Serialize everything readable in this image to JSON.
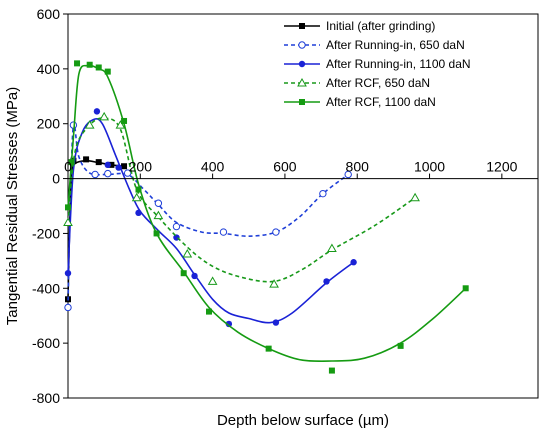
{
  "chart_data": {
    "type": "scatter",
    "title": "",
    "xlabel": "Depth below surface (µm)",
    "ylabel": "Tangential Residual Stresses (MPa)",
    "xlim": [
      0,
      1300
    ],
    "ylim": [
      -800,
      600
    ],
    "xticks": [
      0,
      200,
      400,
      600,
      800,
      1000,
      1200
    ],
    "yticks": [
      -800,
      -600,
      -400,
      -200,
      0,
      200,
      400,
      600
    ],
    "x_tick_labels": [
      "0",
      "200",
      "400",
      "600",
      "800",
      "1000",
      "1200"
    ],
    "y_tick_labels": [
      "-800",
      "-600",
      "-400",
      "-200",
      "0",
      "200",
      "400",
      "600"
    ],
    "grid": false,
    "legend_position": "top-right",
    "series": [
      {
        "name": "Initial (after grinding)",
        "color": "#000000",
        "marker": "square-filled",
        "line": "solid",
        "points": [
          [
            0,
            -440
          ],
          [
            15,
            65
          ],
          [
            50,
            70
          ],
          [
            85,
            60
          ],
          [
            120,
            50
          ],
          [
            155,
            45
          ]
        ],
        "curve": [
          [
            0,
            -440
          ],
          [
            5,
            -150
          ],
          [
            10,
            20
          ],
          [
            20,
            55
          ],
          [
            50,
            65
          ],
          [
            85,
            58
          ],
          [
            120,
            50
          ],
          [
            155,
            45
          ]
        ]
      },
      {
        "name": "After Running-in, 650 daN",
        "color": "#1f3fd8",
        "marker": "circle-open",
        "line": "dashed",
        "points": [
          [
            0,
            -470
          ],
          [
            15,
            195
          ],
          [
            75,
            15
          ],
          [
            110,
            18
          ],
          [
            165,
            20
          ],
          [
            250,
            -90
          ],
          [
            300,
            -175
          ],
          [
            430,
            -195
          ],
          [
            575,
            -195
          ],
          [
            705,
            -55
          ],
          [
            775,
            15
          ]
        ],
        "curve": [
          [
            0,
            -470
          ],
          [
            5,
            -150
          ],
          [
            15,
            195
          ],
          [
            30,
            80
          ],
          [
            60,
            20
          ],
          [
            110,
            15
          ],
          [
            165,
            15
          ],
          [
            210,
            -40
          ],
          [
            250,
            -95
          ],
          [
            300,
            -160
          ],
          [
            370,
            -195
          ],
          [
            430,
            -200
          ],
          [
            500,
            -210
          ],
          [
            575,
            -195
          ],
          [
            640,
            -140
          ],
          [
            705,
            -55
          ],
          [
            775,
            15
          ]
        ]
      },
      {
        "name": "After Running-in, 1100 daN",
        "color": "#1a22d6",
        "marker": "circle-filled",
        "line": "solid",
        "points": [
          [
            0,
            -345
          ],
          [
            80,
            245
          ],
          [
            110,
            50
          ],
          [
            140,
            40
          ],
          [
            195,
            -125
          ],
          [
            300,
            -215
          ],
          [
            350,
            -355
          ],
          [
            445,
            -530
          ],
          [
            575,
            -525
          ],
          [
            715,
            -375
          ],
          [
            790,
            -305
          ]
        ],
        "curve": [
          [
            0,
            -345
          ],
          [
            15,
            30
          ],
          [
            40,
            170
          ],
          [
            70,
            215
          ],
          [
            95,
            200
          ],
          [
            130,
            90
          ],
          [
            170,
            -40
          ],
          [
            200,
            -120
          ],
          [
            250,
            -190
          ],
          [
            300,
            -255
          ],
          [
            350,
            -350
          ],
          [
            400,
            -440
          ],
          [
            445,
            -490
          ],
          [
            500,
            -510
          ],
          [
            560,
            -525
          ],
          [
            620,
            -490
          ],
          [
            715,
            -380
          ],
          [
            790,
            -305
          ]
        ]
      },
      {
        "name": "After RCF, 650 daN",
        "color": "#18991a",
        "marker": "triangle-open",
        "line": "dashed",
        "points": [
          [
            0,
            -160
          ],
          [
            60,
            195
          ],
          [
            100,
            225
          ],
          [
            145,
            195
          ],
          [
            190,
            -70
          ],
          [
            250,
            -135
          ],
          [
            330,
            -275
          ],
          [
            400,
            -375
          ],
          [
            570,
            -385
          ],
          [
            730,
            -255
          ],
          [
            960,
            -70
          ]
        ],
        "curve": [
          [
            0,
            -160
          ],
          [
            20,
            100
          ],
          [
            60,
            195
          ],
          [
            100,
            220
          ],
          [
            145,
            180
          ],
          [
            190,
            -40
          ],
          [
            250,
            -140
          ],
          [
            330,
            -250
          ],
          [
            400,
            -320
          ],
          [
            480,
            -360
          ],
          [
            570,
            -375
          ],
          [
            650,
            -330
          ],
          [
            730,
            -260
          ],
          [
            850,
            -170
          ],
          [
            960,
            -70
          ]
        ]
      },
      {
        "name": "After RCF, 1100 daN",
        "color": "#159b12",
        "marker": "square-filled",
        "line": "solid",
        "points": [
          [
            0,
            -105
          ],
          [
            10,
            60
          ],
          [
            25,
            420
          ],
          [
            60,
            415
          ],
          [
            85,
            405
          ],
          [
            110,
            390
          ],
          [
            155,
            210
          ],
          [
            195,
            -40
          ],
          [
            245,
            -200
          ],
          [
            320,
            -345
          ],
          [
            390,
            -485
          ],
          [
            555,
            -620
          ],
          [
            730,
            -700
          ],
          [
            920,
            -610
          ],
          [
            1100,
            -400
          ]
        ],
        "curve": [
          [
            0,
            -105
          ],
          [
            15,
            150
          ],
          [
            30,
            380
          ],
          [
            55,
            412
          ],
          [
            85,
            400
          ],
          [
            110,
            370
          ],
          [
            155,
            200
          ],
          [
            195,
            -20
          ],
          [
            245,
            -200
          ],
          [
            320,
            -340
          ],
          [
            390,
            -470
          ],
          [
            470,
            -560
          ],
          [
            555,
            -620
          ],
          [
            640,
            -660
          ],
          [
            730,
            -665
          ],
          [
            820,
            -655
          ],
          [
            920,
            -600
          ],
          [
            1010,
            -510
          ],
          [
            1100,
            -400
          ]
        ]
      }
    ]
  }
}
